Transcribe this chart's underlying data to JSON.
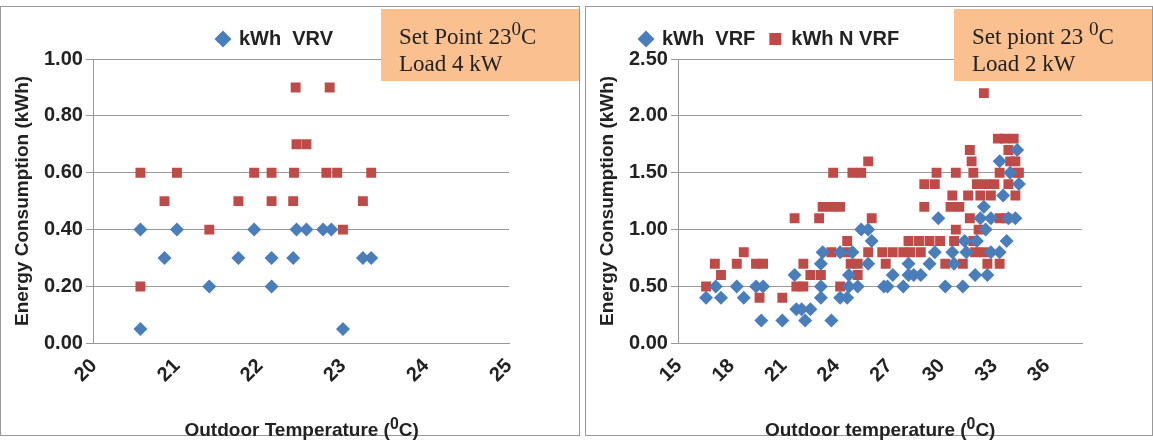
{
  "chart_data": [
    {
      "type": "scatter",
      "xlabel": "Outdoor Temperature ($^{0}$C)",
      "ylabel": "Energy Consumption (kWh)",
      "annotations": [
        "Set Point 23$^{0}$C",
        "Load  4 kW"
      ],
      "xlim": [
        20,
        25
      ],
      "xticks": [
        20,
        21,
        22,
        23,
        24,
        25
      ],
      "ylim": [
        0,
        1
      ],
      "yticks": [
        {
          "value": 0,
          "label": "0.00"
        },
        {
          "value": 0.2,
          "label": "0.20"
        },
        {
          "value": 0.4,
          "label": "0.40"
        },
        {
          "value": 0.6,
          "label": "0.60"
        },
        {
          "value": 0.8,
          "label": "0.80"
        },
        {
          "value": 1,
          "label": "1.00"
        }
      ],
      "grid": "y",
      "legend": "top",
      "series": [
        {
          "name": "kWh  VRV",
          "color": "#4a7ebb",
          "marker": "diamond",
          "x": [
            20.56,
            20.56,
            20.85,
            21.0,
            21.39,
            21.74,
            21.93,
            22.14,
            22.14,
            22.4,
            22.44,
            22.56,
            22.76,
            22.86,
            23.0,
            23.24,
            23.34
          ],
          "values": [
            0.4,
            0.05,
            0.3,
            0.4,
            0.2,
            0.3,
            0.4,
            0.3,
            0.2,
            0.3,
            0.4,
            0.4,
            0.4,
            0.4,
            0.05,
            0.3,
            0.3
          ]
        },
        {
          "color": "#be4b48",
          "marker": "square",
          "x": [
            20.56,
            20.56,
            20.85,
            21.0,
            21.39,
            21.74,
            21.93,
            22.14,
            22.14,
            22.4,
            22.41,
            22.43,
            22.44,
            22.56,
            22.8,
            22.84,
            22.93,
            23.0,
            23.24,
            23.34
          ],
          "values": [
            0.6,
            0.2,
            0.5,
            0.6,
            0.4,
            0.5,
            0.6,
            0.6,
            0.5,
            0.5,
            0.6,
            0.9,
            0.7,
            0.7,
            0.6,
            0.9,
            0.6,
            0.4,
            0.5,
            0.6
          ]
        }
      ]
    },
    {
      "type": "scatter",
      "xlabel": "Outdoor temperature ($^{0}$C)",
      "ylabel": "Energy Consumption (kWh)",
      "annotations": [
        "Set piont 23 $^{0}$C",
        "Load  2 kW"
      ],
      "xlim": [
        15,
        38
      ],
      "xticks": [
        15,
        18,
        21,
        24,
        27,
        30,
        33,
        36
      ],
      "ylim": [
        0,
        2.5
      ],
      "yticks": [
        {
          "value": 0,
          "label": "0.00"
        },
        {
          "value": 0.5,
          "label": "0.50"
        },
        {
          "value": 1,
          "label": "1.00"
        },
        {
          "value": 1.5,
          "label": "1.50"
        },
        {
          "value": 2,
          "label": "2.00"
        },
        {
          "value": 2.5,
          "label": "2.50"
        }
      ],
      "grid": "y",
      "legend": "top left",
      "series": [
        {
          "name": "kWh  VRF",
          "color": "#4a7ebb",
          "marker": "diamond",
          "x": [
            16.55,
            17.1,
            17.4,
            18.3,
            18.7,
            19.4,
            19.7,
            19.8,
            20.9,
            21.6,
            21.7,
            22.0,
            22.2,
            22.5,
            23.1,
            23.2,
            23.1,
            23.1,
            23.7,
            24.2,
            24.2,
            24.6,
            24.9,
            24.7,
            24.7,
            25.2,
            25.4,
            25.8,
            26.0,
            25.8,
            26.7,
            26.9,
            27.2,
            27.8,
            28.1,
            28.1,
            28.4,
            28.8,
            29.3,
            29.6,
            29.8,
            30.2,
            30.6,
            30.7,
            31.2,
            31.3,
            31.4,
            31.9,
            32.0,
            32.2,
            32.4,
            32.5,
            32.6,
            32.8,
            32.8,
            33.3,
            33.3,
            33.5,
            33.7,
            33.8,
            33.9,
            34.2,
            34.3,
            34.4
          ],
          "values": [
            0.4,
            0.5,
            0.4,
            0.5,
            0.4,
            0.5,
            0.2,
            0.5,
            0.2,
            0.6,
            0.3,
            0.3,
            0.2,
            0.3,
            0.7,
            0.8,
            0.5,
            0.4,
            0.2,
            0.8,
            0.4,
            0.4,
            0.8,
            0.6,
            0.5,
            0.5,
            1.0,
            1.0,
            0.9,
            0.7,
            0.5,
            0.5,
            0.6,
            0.5,
            0.7,
            0.6,
            0.6,
            0.6,
            0.7,
            0.8,
            1.1,
            0.5,
            0.8,
            0.7,
            0.5,
            0.9,
            0.8,
            0.6,
            0.9,
            1.1,
            1.2,
            1.0,
            0.6,
            0.8,
            1.1,
            0.8,
            1.6,
            1.3,
            0.9,
            1.1,
            1.5,
            1.1,
            1.7,
            1.4
          ]
        },
        {
          "name": "kWh N VRF",
          "color": "#be4b48",
          "marker": "square",
          "x": [
            16.55,
            17.05,
            17.4,
            18.3,
            18.7,
            19.4,
            19.6,
            19.8,
            20.9,
            21.6,
            21.7,
            22.1,
            22.1,
            22.5,
            23.0,
            23.2,
            23.1,
            23.8,
            23.7,
            23.7,
            24.2,
            24.2,
            24.6,
            24.6,
            24.8,
            24.9,
            25.2,
            25.2,
            25.4,
            25.8,
            26.0,
            25.8,
            26.6,
            26.8,
            27.2,
            27.8,
            28.1,
            28.2,
            28.7,
            28.8,
            29.0,
            29.0,
            29.3,
            29.6,
            29.7,
            29.9,
            30.2,
            30.5,
            30.6,
            30.7,
            30.8,
            30.8,
            31.0,
            31.2,
            31.5,
            31.6,
            31.6,
            31.7,
            31.8,
            31.8,
            31.9,
            32.0,
            32.1,
            32.2,
            32.4,
            32.4,
            32.5,
            32.6,
            32.8,
            33.0,
            33.2,
            33.3,
            33.3,
            33.3,
            33.6,
            33.7,
            33.8,
            33.8,
            33.9,
            34.1,
            34.2,
            34.2,
            34.3,
            34.4
          ],
          "values": [
            0.5,
            0.7,
            0.6,
            0.7,
            0.8,
            0.7,
            0.4,
            0.7,
            0.4,
            1.1,
            0.5,
            0.5,
            0.7,
            0.6,
            1.1,
            1.2,
            0.6,
            1.5,
            0.8,
            1.2,
            1.2,
            0.5,
            0.9,
            0.8,
            0.7,
            1.5,
            0.7,
            0.6,
            1.5,
            1.6,
            1.1,
            0.8,
            0.8,
            0.7,
            0.8,
            0.8,
            0.9,
            0.8,
            0.9,
            0.8,
            1.2,
            1.4,
            0.9,
            1.4,
            1.5,
            0.9,
            0.7,
            1.2,
            1.3,
            0.9,
            1.0,
            1.5,
            1.2,
            0.7,
            1.3,
            1.7,
            1.1,
            1.6,
            1.5,
            0.9,
            0.8,
            1.4,
            1.0,
            1.3,
            2.2,
            0.8,
            1.4,
            0.7,
            1.3,
            1.4,
            1.8,
            1.5,
            1.1,
            0.7,
            1.8,
            1.1,
            1.7,
            1.4,
            1.6,
            1.8,
            1.6,
            1.3,
            1.5,
            1.5
          ]
        }
      ]
    }
  ]
}
